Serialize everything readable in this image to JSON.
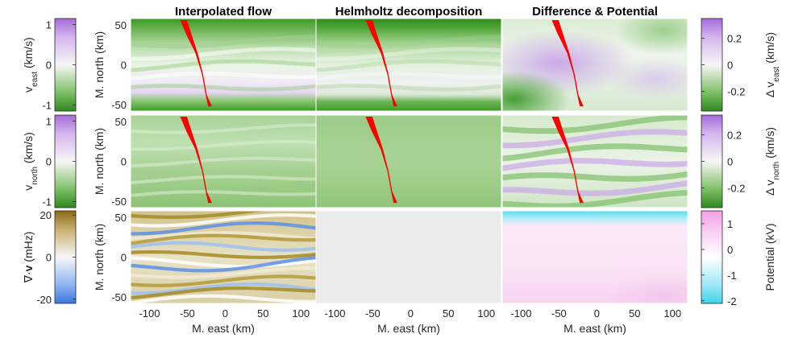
{
  "chart_data": {
    "type": "heatmap",
    "panel_titles": [
      "Interpolated flow",
      "Helmholtz decomposition",
      "Difference & Potential"
    ],
    "row_ylabel": "M. north (km)",
    "col_xlabel": "M. east (km)",
    "x_ticks": [
      "-100",
      "-50",
      "0",
      "50",
      "100"
    ],
    "x_tick_values": [
      -100,
      -50,
      0,
      50,
      100
    ],
    "xlim": [
      -125,
      120
    ],
    "y_ticks": [
      "50",
      "0",
      "-50"
    ],
    "y_tick_values": [
      50,
      0,
      -50
    ],
    "ylim": [
      -58,
      58
    ],
    "left_colorbars": [
      {
        "label": "v_east (km/s)",
        "base": "v",
        "sub": "east",
        "unit": "(km/s)",
        "ticks": [
          "1",
          "0",
          "-1"
        ],
        "tick_values": [
          1,
          0,
          -1
        ],
        "range": [
          -1.15,
          1.15
        ],
        "colormap": "purple-white-green"
      },
      {
        "label": "v_north (km/s)",
        "base": "v",
        "sub": "north",
        "unit": "(km/s)",
        "ticks": [
          "1",
          "0",
          "-1"
        ],
        "tick_values": [
          1,
          0,
          -1
        ],
        "range": [
          -1.15,
          1.15
        ],
        "colormap": "purple-white-green"
      },
      {
        "label": "∇·v (mHz)",
        "prefix": "∇·",
        "bold": "v",
        "unit": "(mHz)",
        "ticks": [
          "20",
          "0",
          "-20"
        ],
        "tick_values": [
          20,
          0,
          -20
        ],
        "range": [
          -22,
          22
        ],
        "colormap": "brown-white-blue"
      }
    ],
    "right_colorbars": [
      {
        "label": "Δ v_east (km/s)",
        "prefix": "Δ v",
        "sub": "east",
        "unit": "(km/s)",
        "ticks": [
          "0.2",
          "0",
          "-0.2"
        ],
        "tick_values": [
          0.2,
          0,
          -0.2
        ],
        "range": [
          -0.35,
          0.35
        ],
        "colormap": "purple-white-green"
      },
      {
        "label": "Δ v_north (km/s)",
        "prefix": "Δ v",
        "sub": "north",
        "unit": "(km/s)",
        "ticks": [
          "0.2",
          "0",
          "-0.2"
        ],
        "tick_values": [
          0.2,
          0,
          -0.2
        ],
        "range": [
          -0.35,
          0.35
        ],
        "colormap": "purple-white-green"
      },
      {
        "label": "Potential (kV)",
        "unit": "Potential (kV)",
        "ticks": [
          "1",
          "0",
          "-1",
          "-2"
        ],
        "tick_values": [
          1,
          0,
          -1,
          -2
        ],
        "range": [
          -2.1,
          1.5
        ],
        "colormap": "pink-white-cyan"
      }
    ],
    "panels": [
      {
        "row": 0,
        "col": 0,
        "field": "v_east",
        "pattern": "strong green top and bottom bands, light alternating stripes",
        "has_track": true
      },
      {
        "row": 0,
        "col": 1,
        "field": "v_east (Helmholtz)",
        "pattern": "smooth green bands",
        "has_track": true
      },
      {
        "row": 0,
        "col": 2,
        "field": "Δ v_east",
        "pattern": "purple blob upper-left, green lower-left",
        "has_track": true
      },
      {
        "row": 1,
        "col": 0,
        "field": "v_north",
        "pattern": "uniform light green with faint stripes",
        "has_track": true
      },
      {
        "row": 1,
        "col": 1,
        "field": "v_north (Helmholtz)",
        "pattern": "uniform light green",
        "has_track": true
      },
      {
        "row": 1,
        "col": 2,
        "field": "Δ v_north",
        "pattern": "alternating purple/green stripes",
        "has_track": true
      },
      {
        "row": 2,
        "col": 0,
        "field": "divergence",
        "pattern": "alternating brown/blue stripes",
        "has_track": false
      },
      {
        "row": 2,
        "col": 1,
        "field": "empty",
        "pattern": "grey",
        "has_track": false
      },
      {
        "row": 2,
        "col": 2,
        "field": "potential",
        "pattern": "cyan strip at top, light pink below",
        "has_track": false
      }
    ],
    "track": {
      "color": "#ff0000",
      "points": [
        [
          -55,
          56
        ],
        [
          -48,
          38
        ],
        [
          -38,
          15
        ],
        [
          -30,
          -12
        ],
        [
          -25,
          -38
        ],
        [
          -20,
          -52
        ]
      ],
      "width_km": [
        9,
        7,
        3,
        1.5,
        1.5,
        5
      ]
    }
  }
}
